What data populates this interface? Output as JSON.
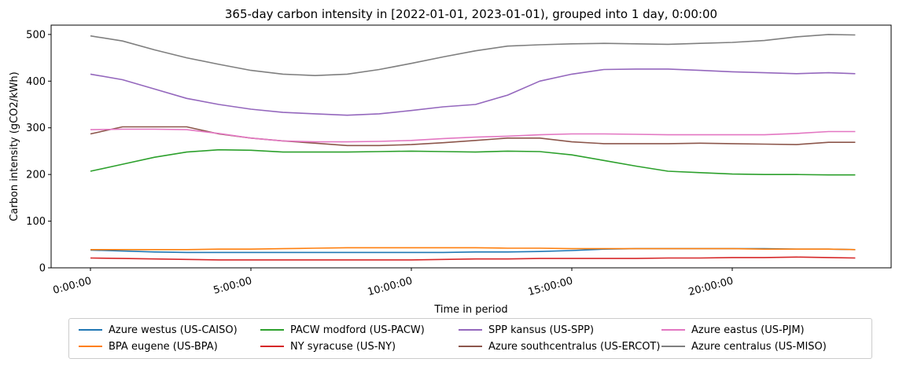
{
  "chart_data": {
    "type": "line",
    "title": "365-day carbon intensity in [2022-01-01, 2023-01-01), grouped into 1 day, 0:00:00",
    "xlabel": "Time in period",
    "ylabel": "Carbon intensity (gCO2/kWh)",
    "xlim": [
      "0:00:00",
      "23:50:00"
    ],
    "ylim": [
      0,
      520
    ],
    "xticks": [
      "0:00:00",
      "5:00:00",
      "10:00:00",
      "15:00:00",
      "20:00:00"
    ],
    "yticks": [
      0,
      100,
      200,
      300,
      400,
      500
    ],
    "x": [
      "0:00:00",
      "1:00:00",
      "2:00:00",
      "3:00:00",
      "4:00:00",
      "5:00:00",
      "6:00:00",
      "7:00:00",
      "8:00:00",
      "9:00:00",
      "10:00:00",
      "11:00:00",
      "12:00:00",
      "13:00:00",
      "14:00:00",
      "15:00:00",
      "16:00:00",
      "17:00:00",
      "18:00:00",
      "19:00:00",
      "20:00:00",
      "21:00:00",
      "22:00:00",
      "23:00:00",
      "23:50:00"
    ],
    "grid": false,
    "legend_placement": "bottom-center",
    "series": [
      {
        "name": "Azure westus (US-CAISO)",
        "color": "#1f77b4",
        "values": [
          38,
          36,
          34,
          33,
          33,
          33,
          33,
          33,
          33,
          33,
          33,
          33,
          34,
          34,
          35,
          37,
          40,
          41,
          41,
          41,
          41,
          41,
          40,
          40,
          39
        ]
      },
      {
        "name": "BPA eugene (US-BPA)",
        "color": "#ff7f0e",
        "values": [
          39,
          39,
          39,
          39,
          40,
          40,
          41,
          42,
          43,
          43,
          43,
          43,
          43,
          42,
          42,
          41,
          41,
          41,
          41,
          41,
          41,
          40,
          40,
          40,
          39
        ]
      },
      {
        "name": "PACW modford (US-PACW)",
        "color": "#2ca02c",
        "values": [
          207,
          222,
          237,
          248,
          253,
          252,
          248,
          248,
          248,
          249,
          250,
          249,
          248,
          250,
          249,
          242,
          230,
          218,
          207,
          204,
          201,
          200,
          200,
          199,
          199
        ]
      },
      {
        "name": "NY syracuse (US-NY)",
        "color": "#d62728",
        "values": [
          21,
          20,
          19,
          18,
          17,
          17,
          17,
          17,
          17,
          17,
          17,
          18,
          19,
          19,
          20,
          20,
          20,
          20,
          21,
          21,
          22,
          22,
          23,
          22,
          21
        ]
      },
      {
        "name": "SPP kansus (US-SPP)",
        "color": "#9467bd",
        "values": [
          415,
          403,
          383,
          363,
          350,
          340,
          333,
          330,
          327,
          330,
          337,
          345,
          350,
          370,
          400,
          415,
          425,
          426,
          426,
          423,
          420,
          418,
          416,
          418,
          416
        ]
      },
      {
        "name": "Azure southcentralus (US-ERCOT)",
        "color": "#8c564b",
        "values": [
          287,
          302,
          302,
          302,
          287,
          278,
          272,
          267,
          262,
          262,
          264,
          268,
          273,
          278,
          278,
          270,
          266,
          266,
          266,
          267,
          266,
          265,
          264,
          269,
          269
        ]
      },
      {
        "name": "Azure eastus (US-PJM)",
        "color": "#e377c2",
        "values": [
          296,
          297,
          297,
          296,
          288,
          278,
          272,
          270,
          270,
          271,
          273,
          277,
          280,
          282,
          285,
          287,
          287,
          286,
          285,
          285,
          285,
          285,
          288,
          292,
          292
        ]
      },
      {
        "name": "Azure centralus (US-MISO)",
        "color": "#7f7f7f",
        "values": [
          497,
          486,
          467,
          450,
          436,
          423,
          415,
          412,
          415,
          425,
          438,
          452,
          465,
          475,
          478,
          480,
          481,
          480,
          479,
          481,
          483,
          487,
          495,
          500,
          499
        ]
      }
    ]
  }
}
